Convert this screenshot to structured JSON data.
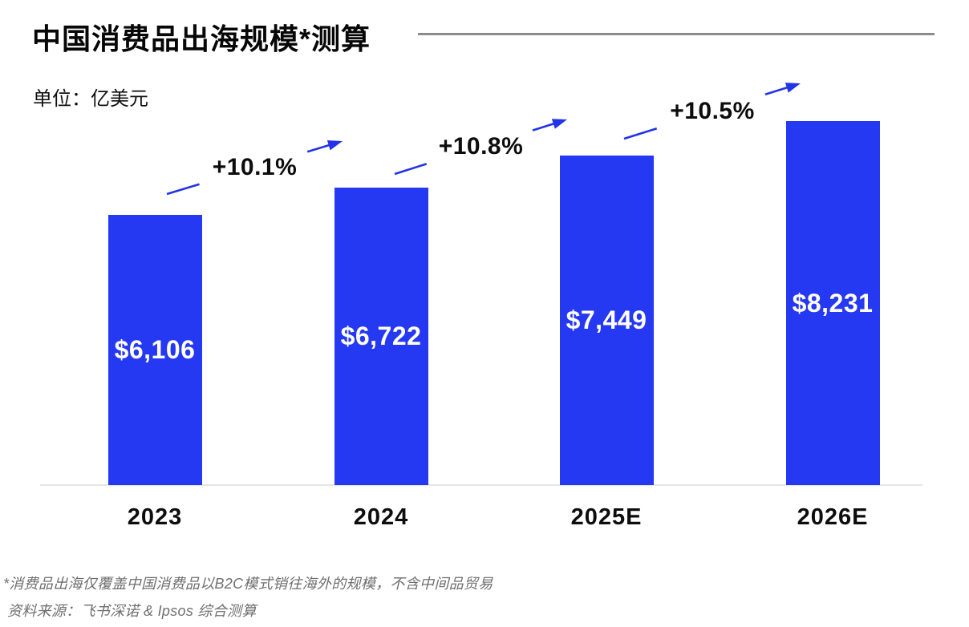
{
  "header": {
    "title": "中国消费品出海规模*测算",
    "unit_label": "单位：亿美元"
  },
  "chart_data": {
    "type": "bar",
    "title": "中国消费品出海规模*测算",
    "unit": "亿美元",
    "categories": [
      "2023",
      "2024",
      "2025E",
      "2026E"
    ],
    "values": [
      6106,
      6722,
      7449,
      8231
    ],
    "value_labels": [
      "$6,106",
      "$6,722",
      "$7,449",
      "$8,231"
    ],
    "annotations": [
      {
        "label": "+10.1%",
        "from": "2023",
        "to": "2024"
      },
      {
        "label": "+10.8%",
        "from": "2024",
        "to": "2025E"
      },
      {
        "label": "+10.5%",
        "from": "2025E",
        "to": "2026E"
      }
    ],
    "xlabel": "",
    "ylabel": "亿美元",
    "ylim": [
      0,
      8800
    ],
    "grid": false,
    "y_axis_visible": false,
    "legend": "none",
    "bar_color": "#2538f2",
    "arrow_color": "#2233e8",
    "value_label_color": "#ffffff",
    "category_label_color": "#0d0d0d"
  },
  "footnotes": {
    "note": "*消费品出海仅覆盖中国消费品以B2C模式销往海外的规模，不含中间品贸易",
    "source": "资料来源：飞书深诺 & Ipsos 综合测算"
  }
}
